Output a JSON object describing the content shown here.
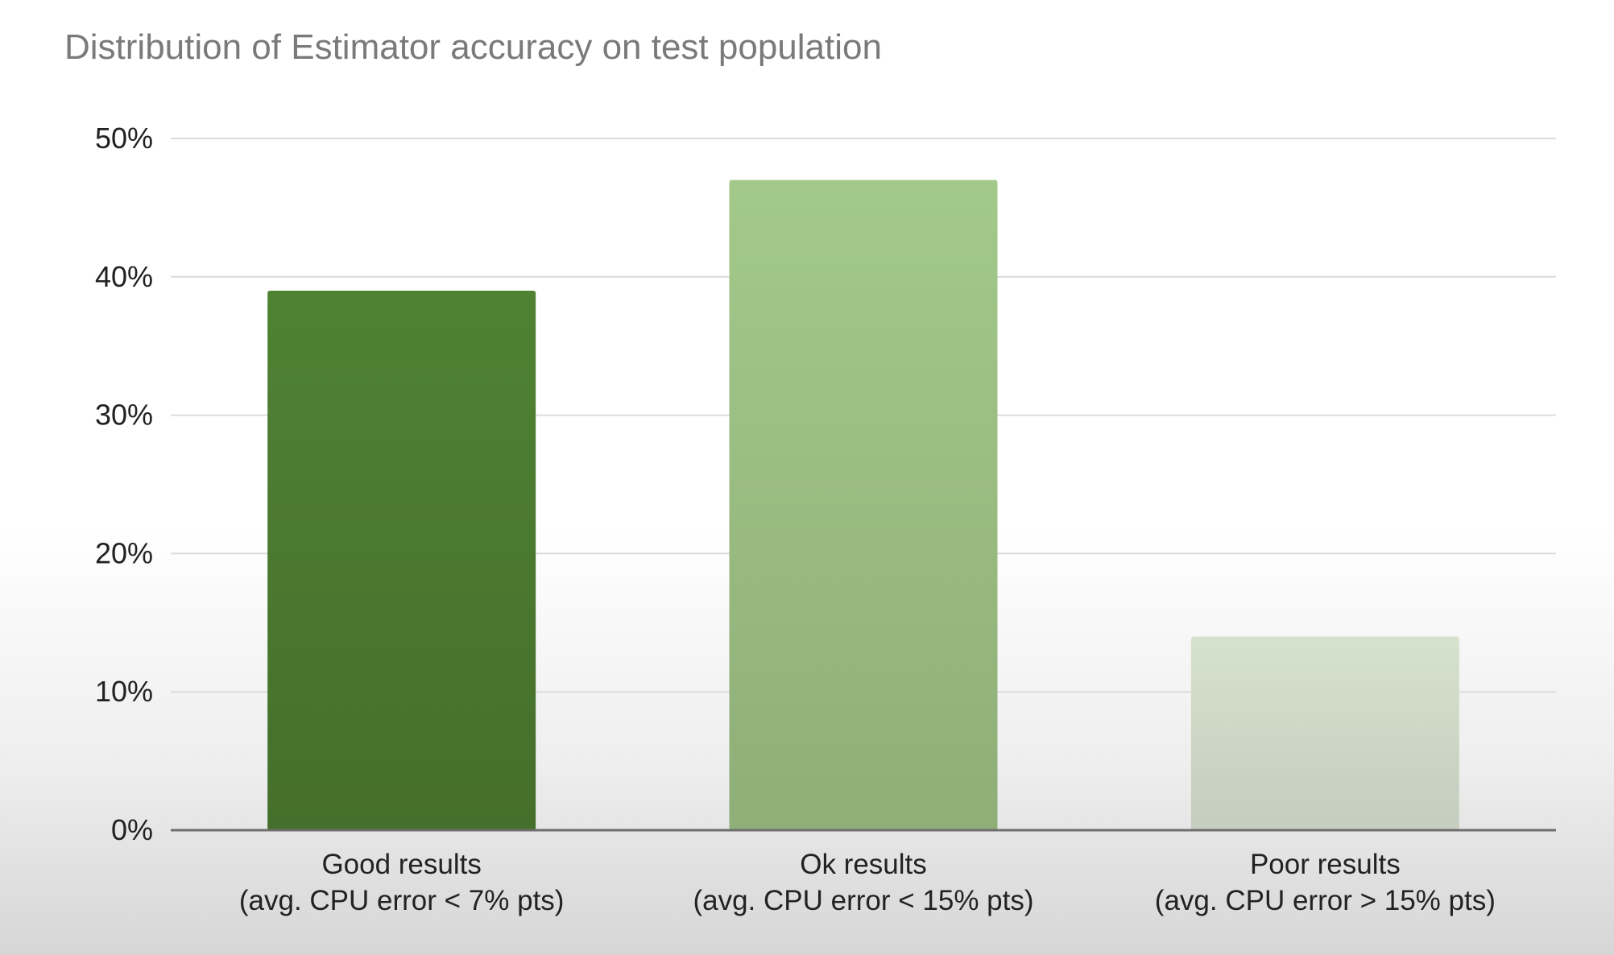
{
  "chart_data": {
    "type": "bar",
    "title": "Distribution of Estimator accuracy on test population",
    "xlabel": "",
    "ylabel": "",
    "categories": [
      [
        "Good results",
        "(avg. CPU error < 7% pts)"
      ],
      [
        "Ok results",
        "(avg. CPU error < 15% pts)"
      ],
      [
        "Poor results",
        "(avg. CPU error > 15% pts)"
      ]
    ],
    "values": [
      39,
      47,
      14
    ],
    "ylim": [
      0,
      50
    ],
    "y_ticks": [
      0,
      10,
      20,
      30,
      40,
      50
    ],
    "y_tick_labels": [
      "0%",
      "10%",
      "20%",
      "30%",
      "40%",
      "50%"
    ],
    "bar_colors": [
      [
        "#4f8233",
        "#456f2c"
      ],
      [
        "#a3c98a",
        "#8fae78"
      ],
      [
        "#d5e2cc",
        "#c5cdbf"
      ]
    ],
    "grid": true,
    "legend": "none"
  }
}
